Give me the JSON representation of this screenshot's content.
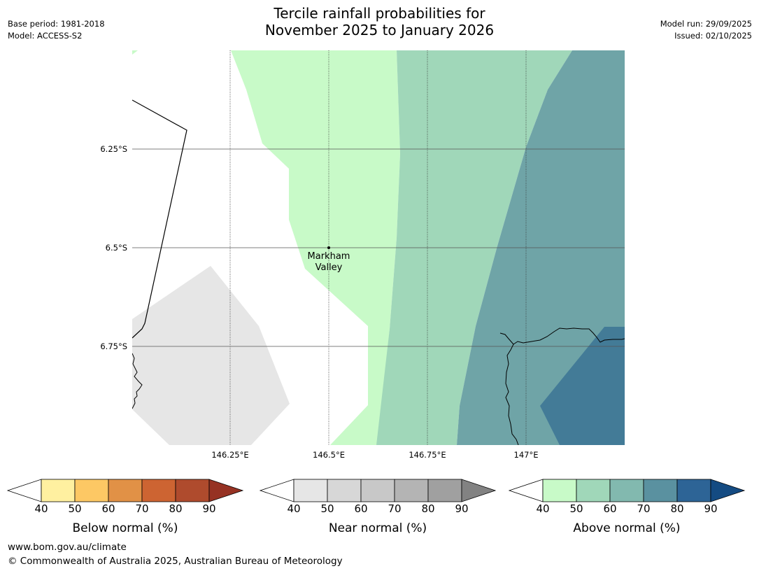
{
  "title": {
    "line1": "Tercile rainfall probabilities for",
    "line2": "November 2025 to January 2026"
  },
  "meta_left": {
    "base_period": "Base period: 1981-2018",
    "model": "Model: ACCESS-S2"
  },
  "meta_right": {
    "model_run": "Model run: 29/09/2025",
    "issued": "Issued: 02/10/2025"
  },
  "map": {
    "lat_labels": [
      "6.25°S",
      "6.5°S",
      "6.75°S"
    ],
    "lon_labels": [
      "146.25°E",
      "146.5°E",
      "146.75°E",
      "147°E"
    ],
    "place": {
      "line1": "Markham",
      "line2": "Valley"
    }
  },
  "colorbars": [
    {
      "label": "Below normal (%)",
      "ticks": [
        "40",
        "50",
        "60",
        "70",
        "80",
        "90"
      ],
      "colors": [
        "#ffffff",
        "#fff0a0",
        "#fdc864",
        "#e19146",
        "#cd6432",
        "#af4b2d",
        "#963223"
      ]
    },
    {
      "label": "Near normal (%)",
      "ticks": [
        "40",
        "50",
        "60",
        "70",
        "80",
        "90"
      ],
      "colors": [
        "#ffffff",
        "#e6e6e6",
        "#d7d7d7",
        "#c8c8c8",
        "#b4b4b4",
        "#a0a0a0",
        "#828282"
      ]
    },
    {
      "label": "Above normal (%)",
      "ticks": [
        "40",
        "50",
        "60",
        "70",
        "80",
        "90"
      ],
      "colors": [
        "#ffffff",
        "#c8fac8",
        "#a0d7b9",
        "#82b9af",
        "#5a91a0",
        "#2d6496",
        "#144b82"
      ]
    }
  ],
  "footer": {
    "url": "www.bom.gov.au/climate",
    "copyright": "© Commonwealth of Australia 2025, Australian Bureau of Meteorology"
  }
}
